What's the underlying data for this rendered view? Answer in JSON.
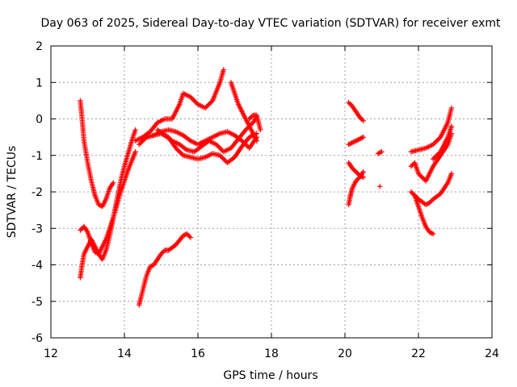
{
  "chart_data": {
    "type": "scatter",
    "title": "Day 063 of 2025, Sidereal Day-to-day VTEC variation (SDTVAR) for receiver exmt",
    "xlabel": "GPS time / hours",
    "ylabel": "SDTVAR / TECUs",
    "xlim": [
      12,
      24
    ],
    "ylim": [
      -6,
      2
    ],
    "xticks": [
      12,
      14,
      16,
      18,
      20,
      22,
      24
    ],
    "yticks": [
      -6,
      -5,
      -4,
      -3,
      -2,
      -1,
      0,
      1,
      2
    ],
    "grid": true,
    "marker": "+",
    "color": "#ff0000",
    "series": [
      {
        "x": [
          12.8,
          12.85,
          12.9,
          13.0,
          13.1,
          13.2,
          13.3,
          13.4,
          13.5,
          13.6,
          13.7
        ],
        "y": [
          0.5,
          0.0,
          -0.6,
          -1.2,
          -1.7,
          -2.1,
          -2.35,
          -2.4,
          -2.2,
          -1.9,
          -1.75
        ]
      },
      {
        "x": [
          12.8,
          12.85,
          12.9,
          13.0,
          13.1,
          13.2,
          13.3,
          13.4,
          13.5,
          13.6,
          13.7,
          13.8,
          13.9,
          14.0,
          14.1,
          14.2,
          14.3
        ],
        "y": [
          -4.35,
          -4.0,
          -3.7,
          -3.5,
          -3.3,
          -3.5,
          -3.7,
          -3.85,
          -3.6,
          -3.2,
          -2.7,
          -2.2,
          -1.7,
          -1.3,
          -0.95,
          -0.6,
          -0.3
        ]
      },
      {
        "x": [
          12.8,
          12.9,
          13.0,
          13.1,
          13.2,
          13.3,
          13.5,
          13.7,
          13.9,
          14.1,
          14.3
        ],
        "y": [
          -3.05,
          -2.95,
          -3.1,
          -3.4,
          -3.65,
          -3.7,
          -3.3,
          -2.7,
          -2.0,
          -1.4,
          -0.9
        ]
      },
      {
        "x": [
          14.4,
          14.5,
          14.6,
          14.7,
          14.8,
          14.9,
          15.0,
          15.1,
          15.2,
          15.4,
          15.6,
          15.7,
          15.8
        ],
        "y": [
          -5.1,
          -4.7,
          -4.3,
          -4.05,
          -4.0,
          -3.85,
          -3.7,
          -3.6,
          -3.6,
          -3.45,
          -3.2,
          -3.15,
          -3.25
        ]
      },
      {
        "x": [
          14.3,
          14.5,
          14.7,
          14.9,
          15.1,
          15.3,
          15.5,
          15.6,
          15.8,
          16.0,
          16.2,
          16.4,
          16.6,
          16.7
        ],
        "y": [
          -0.6,
          -0.5,
          -0.35,
          -0.1,
          0.0,
          0.0,
          0.4,
          0.7,
          0.6,
          0.4,
          0.3,
          0.5,
          1.0,
          1.35
        ]
      },
      {
        "x": [
          14.4,
          14.6,
          14.8,
          15.0,
          15.2,
          15.4,
          15.6,
          15.8,
          16.0,
          16.2,
          16.4,
          16.6,
          16.8,
          17.0,
          17.2,
          17.4,
          17.6
        ],
        "y": [
          -0.7,
          -0.5,
          -0.45,
          -0.4,
          -0.5,
          -0.8,
          -1.0,
          -1.05,
          -1.1,
          -1.05,
          -0.95,
          -1.0,
          -1.2,
          -1.05,
          -0.75,
          -0.5,
          -0.4
        ]
      },
      {
        "x": [
          14.6,
          14.8,
          15.0,
          15.2,
          15.4,
          15.6,
          15.8,
          16.0,
          16.2,
          16.4,
          16.6,
          16.8,
          17.0,
          17.2,
          17.4,
          17.6
        ],
        "y": [
          -0.5,
          -0.45,
          -0.35,
          -0.3,
          -0.35,
          -0.45,
          -0.6,
          -0.7,
          -0.6,
          -0.5,
          -0.4,
          -0.35,
          -0.45,
          -0.6,
          -0.8,
          -0.5
        ]
      },
      {
        "x": [
          14.9,
          15.1,
          15.3,
          15.5,
          15.7,
          15.9,
          16.1,
          16.3,
          16.5,
          16.7,
          16.9,
          17.1,
          17.3,
          17.5,
          17.6
        ],
        "y": [
          -0.3,
          -0.45,
          -0.6,
          -0.7,
          -0.85,
          -0.9,
          -0.75,
          -0.6,
          -0.7,
          -0.9,
          -0.8,
          -0.55,
          -0.3,
          -0.1,
          0.05
        ]
      },
      {
        "x": [
          16.9,
          17.0,
          17.1,
          17.2,
          17.3,
          17.4,
          17.5,
          17.6
        ],
        "y": [
          1.0,
          0.7,
          0.4,
          0.2,
          0.0,
          -0.2,
          -0.4,
          -0.6
        ]
      },
      {
        "x": [
          17.4,
          17.5,
          17.6,
          17.7
        ],
        "y": [
          0.0,
          0.1,
          0.1,
          -0.3
        ]
      },
      {
        "x": [
          20.1,
          20.2,
          20.3,
          20.4,
          20.5
        ],
        "y": [
          0.45,
          0.35,
          0.2,
          0.05,
          -0.05
        ]
      },
      {
        "x": [
          20.1,
          20.2,
          20.3,
          20.4,
          20.5
        ],
        "y": [
          -0.7,
          -0.65,
          -0.6,
          -0.55,
          -0.5
        ]
      },
      {
        "x": [
          20.1,
          20.15,
          20.2,
          20.3,
          20.4,
          20.5
        ],
        "y": [
          -2.35,
          -2.1,
          -1.9,
          -1.7,
          -1.6,
          -1.45
        ]
      },
      {
        "x": [
          20.1,
          20.2,
          20.3,
          20.4,
          20.5
        ],
        "y": [
          -1.2,
          -1.35,
          -1.45,
          -1.55,
          -1.6
        ]
      },
      {
        "x": [
          20.9,
          21.0
        ],
        "y": [
          -0.95,
          -0.9
        ]
      },
      {
        "x": [
          20.95
        ],
        "y": [
          -1.85
        ]
      },
      {
        "x": [
          21.8,
          22.0,
          22.2,
          22.4,
          22.6,
          22.8,
          22.9
        ],
        "y": [
          -0.9,
          -0.85,
          -0.8,
          -0.7,
          -0.5,
          -0.1,
          0.3
        ]
      },
      {
        "x": [
          21.8,
          21.9,
          22.0,
          22.1,
          22.2,
          22.3,
          22.4
        ],
        "y": [
          -2.0,
          -2.1,
          -2.4,
          -2.7,
          -2.95,
          -3.1,
          -3.15
        ]
      },
      {
        "x": [
          21.8,
          21.9,
          22.0,
          22.2,
          22.4,
          22.6,
          22.8,
          22.9
        ],
        "y": [
          -1.3,
          -1.2,
          -1.5,
          -1.7,
          -1.3,
          -1.0,
          -0.7,
          -0.4
        ]
      },
      {
        "x": [
          21.9,
          22.0,
          22.2,
          22.3,
          22.4,
          22.6,
          22.8,
          22.9
        ],
        "y": [
          -2.1,
          -2.2,
          -2.35,
          -2.3,
          -2.2,
          -2.05,
          -1.75,
          -1.5
        ]
      },
      {
        "x": [
          22.4,
          22.6,
          22.8,
          22.9
        ],
        "y": [
          -1.1,
          -0.9,
          -0.5,
          -0.2
        ]
      }
    ]
  }
}
